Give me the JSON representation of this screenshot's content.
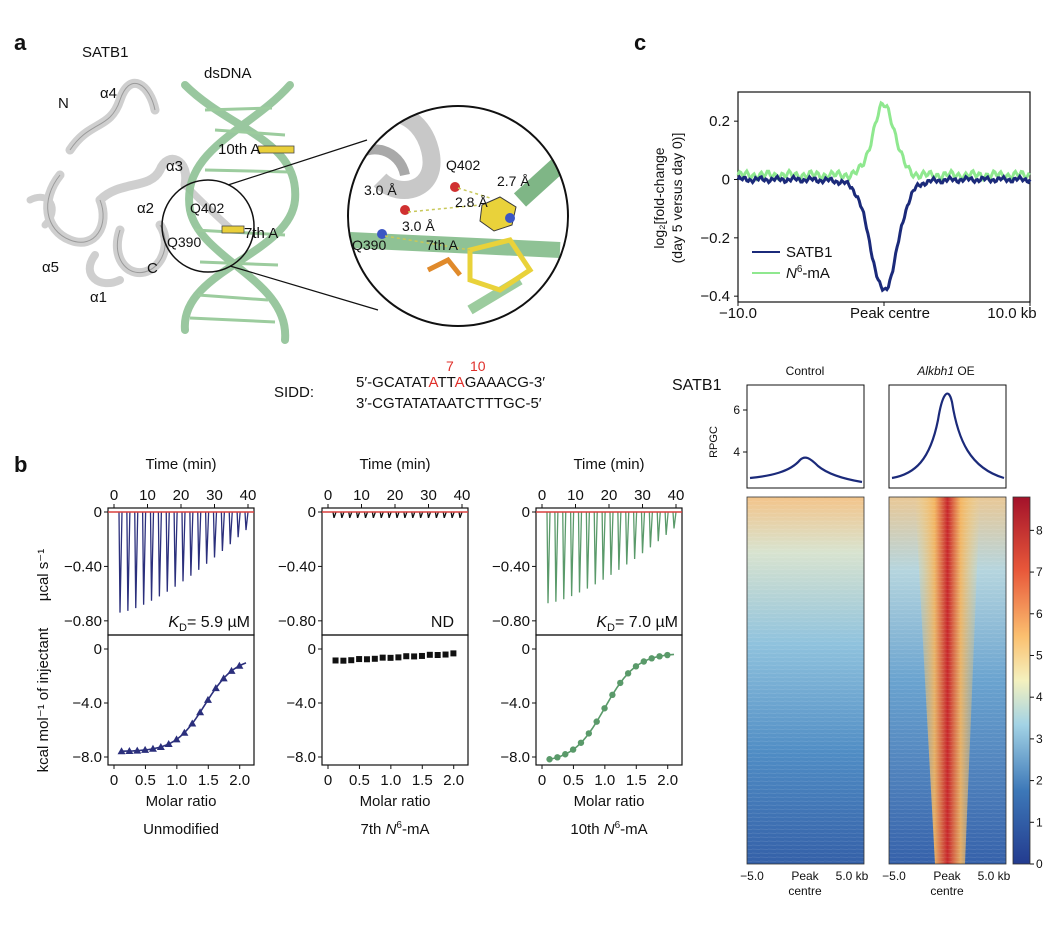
{
  "panel_a": {
    "letter": "a",
    "labels": {
      "satb1": "SATB1",
      "dsdna": "dsDNA",
      "n_term": "N",
      "c_term": "C",
      "a1": "α1",
      "a2": "α2",
      "a3": "α3",
      "a4": "α4",
      "a5": "α5",
      "q402": "Q402",
      "q390": "Q390",
      "tenth_a": "10th A",
      "seventh_a": "7th A"
    },
    "zoom_labels": {
      "q402": "Q402",
      "q390": "Q390",
      "seventh_a": "7th A",
      "d1": "3.0 Å",
      "d2": "2.8 Å",
      "d3": "2.7 Å",
      "d4": "3.0 Å"
    },
    "sidd": {
      "label": "SIDD:",
      "pos7": "7",
      "pos10": "10",
      "top_pre": "5′-GCATAT",
      "top_a7": "A",
      "top_mid": "TT",
      "top_a10": "A",
      "top_post": "GAAACG-3′",
      "bottom": "3′-CGTATATAATCTTTGC-5′",
      "highlight_color": "#e0302b"
    }
  },
  "panel_b": {
    "letter": "b",
    "time_label": "Time (min)",
    "time_ticks": [
      "0",
      "10",
      "20",
      "30",
      "40"
    ],
    "ylabel_top": "µcal s⁻¹",
    "ylabel_bottom": "kcal mol⁻¹ of injectant",
    "top_ticks": [
      "0",
      "−0.40",
      "−0.80"
    ],
    "bottom_ticks": [
      "0",
      "−4.0",
      "−8.0"
    ],
    "molar_ticks": [
      "0",
      "0.5",
      "1.0",
      "1.5",
      "2.0"
    ],
    "xlabel": "Molar ratio",
    "baseline_color": "#d9413f",
    "subpanels": [
      {
        "condition": "Unmodified",
        "kd_label": "K",
        "kd_sub": "D",
        "kd_value": "= 5.9 µM",
        "color": "#2b2f7c",
        "marker": "triangle",
        "top_depth_fraction": 0.86,
        "bottom_first_ticks_offset": 0
      },
      {
        "condition": "7th N6-mA",
        "condition_main": "7th ",
        "condition_italic": "N",
        "condition_sup": "6",
        "condition_tail": "-mA",
        "kd_value": "ND",
        "color": "#111111",
        "marker": "square",
        "top_depth_fraction": 0.05
      },
      {
        "condition": "10th N6-mA",
        "condition_main": "10th ",
        "condition_italic": "N",
        "condition_sup": "6",
        "condition_tail": "-mA",
        "kd_label": "K",
        "kd_sub": "D",
        "kd_value": "= 7.0 µM",
        "color": "#5a9a6a",
        "marker": "circle",
        "top_depth_fraction": 0.78
      }
    ]
  },
  "panel_c": {
    "letter": "c",
    "line_chart": {
      "type": "line",
      "ylabel_line1": "log₂[fold-change",
      "ylabel_line2": "(day 5 versus day 0)]",
      "yticks": [
        "0.2",
        "0",
        "−0.2",
        "−0.4"
      ],
      "ylim": [
        -0.42,
        0.3
      ],
      "xtick_left": "−10.0",
      "xtick_mid": "Peak centre",
      "xtick_right": "10.0 kb",
      "xlim": [
        -10,
        10
      ],
      "series": [
        {
          "name": "SATB1",
          "color": "#1b2a7a"
        },
        {
          "name": "N6-mA",
          "name_italic": "N",
          "name_sup": "6",
          "name_tail": "-mA",
          "color": "#8fe88f"
        }
      ]
    },
    "heatmap": {
      "row_label": "SATB1",
      "col_control": "Control",
      "col_oe_italic": "Alkbh1",
      "col_oe_tail": " OE",
      "profile_ylabel": "RPGC",
      "profile_ticks": [
        "6",
        "4"
      ],
      "xtick_left": "−5.0",
      "xtick_mid1": "Peak",
      "xtick_mid2": "centre",
      "xtick_right": "5.0 kb",
      "colorbar_ticks": [
        "8",
        "7",
        "6",
        "5",
        "4",
        "3",
        "2",
        "1",
        "0"
      ],
      "line_color": "#1b2a7a"
    }
  }
}
